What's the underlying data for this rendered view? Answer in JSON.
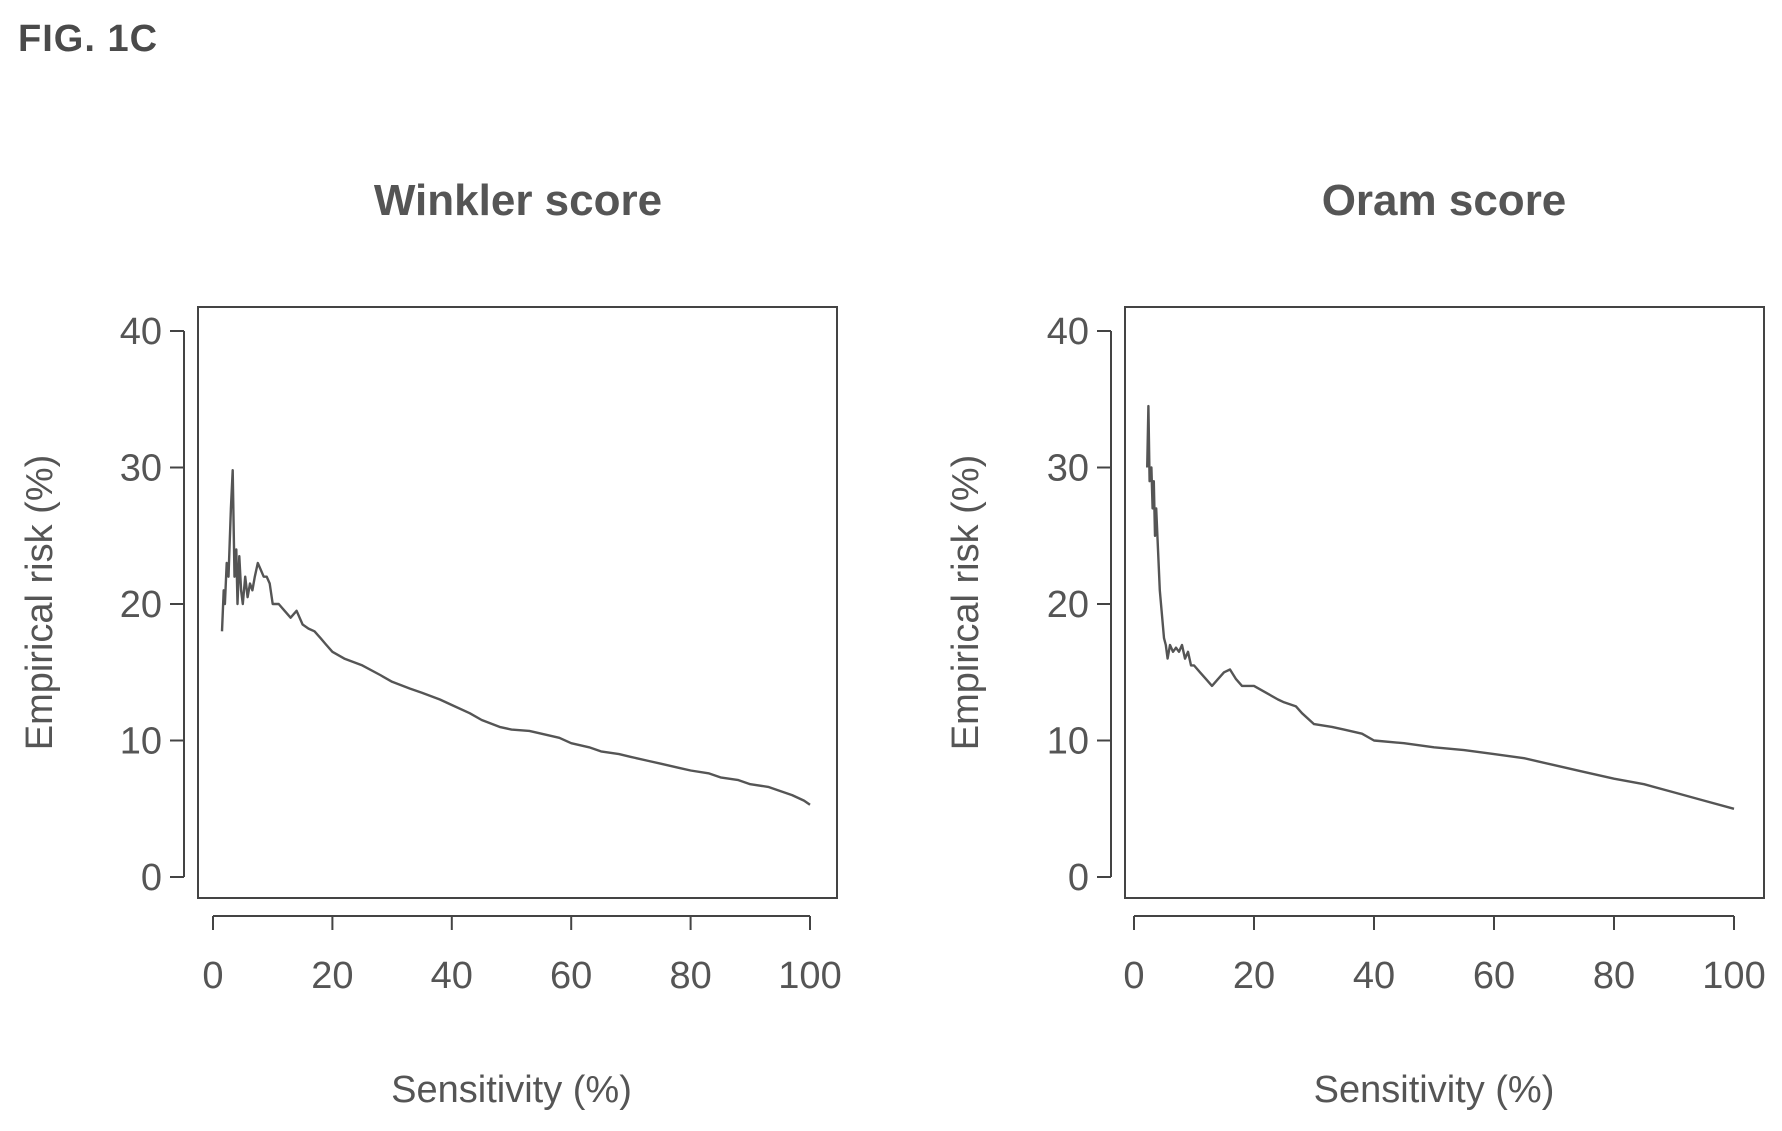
{
  "figure_label": "FIG. 1C",
  "chart_data": [
    {
      "type": "line",
      "title": "Winkler score",
      "xlabel": "Sensitivity (%)",
      "ylabel": "Empirical risk (%)",
      "xlim": [
        0,
        100
      ],
      "ylim": [
        0,
        40
      ],
      "xticks": [
        0,
        20,
        40,
        60,
        80,
        100
      ],
      "yticks": [
        0,
        10,
        20,
        30,
        40
      ],
      "grid": false,
      "series": [
        {
          "x": [
            1.5,
            1.8,
            2.0,
            2.3,
            2.6,
            3.0,
            3.3,
            3.6,
            3.9,
            4.1,
            4.4,
            4.7,
            5.0,
            5.4,
            5.8,
            6.2,
            6.6,
            7.0,
            7.5,
            8.0,
            8.5,
            9.0,
            9.5,
            10,
            11,
            12,
            13,
            14,
            15,
            16,
            17,
            18,
            19,
            20,
            22,
            25,
            28,
            30,
            33,
            35,
            38,
            40,
            43,
            45,
            48,
            50,
            53,
            55,
            58,
            60,
            63,
            65,
            68,
            70,
            73,
            75,
            78,
            80,
            83,
            85,
            88,
            90,
            93,
            95,
            97,
            99,
            100
          ],
          "y": [
            18,
            21,
            20,
            23,
            22,
            27,
            29.8,
            22,
            24,
            20,
            23.5,
            21,
            20,
            22,
            20.5,
            21.5,
            21,
            22,
            23,
            22.5,
            22,
            22,
            21.5,
            20,
            20,
            19.5,
            19,
            19.5,
            18.5,
            18.2,
            18,
            17.5,
            17,
            16.5,
            16,
            15.5,
            14.8,
            14.3,
            13.8,
            13.5,
            13,
            12.6,
            12,
            11.5,
            11,
            10.8,
            10.7,
            10.5,
            10.2,
            9.8,
            9.5,
            9.2,
            9,
            8.8,
            8.5,
            8.3,
            8,
            7.8,
            7.6,
            7.3,
            7.1,
            6.8,
            6.6,
            6.3,
            6,
            5.6,
            5.3
          ]
        }
      ]
    },
    {
      "type": "line",
      "title": "Oram score",
      "xlabel": "Sensitivity (%)",
      "ylabel": "Empirical risk (%)",
      "xlim": [
        0,
        100
      ],
      "ylim": [
        0,
        40
      ],
      "xticks": [
        0,
        20,
        40,
        60,
        80,
        100
      ],
      "yticks": [
        0,
        10,
        20,
        30,
        40
      ],
      "grid": false,
      "series": [
        {
          "x": [
            2.2,
            2.4,
            2.6,
            2.9,
            3.1,
            3.3,
            3.5,
            3.7,
            4.0,
            4.3,
            4.6,
            5.0,
            5.3,
            5.6,
            6.0,
            6.5,
            7.0,
            7.5,
            8.0,
            8.5,
            9.0,
            9.5,
            10,
            11,
            12,
            13,
            14,
            15,
            16,
            17,
            18,
            20,
            22,
            24,
            25,
            27,
            28,
            30,
            33,
            35,
            38,
            40,
            45,
            50,
            55,
            60,
            65,
            70,
            75,
            80,
            85,
            90,
            95,
            100
          ],
          "y": [
            30,
            34.5,
            29,
            30,
            27,
            29,
            25,
            27,
            24,
            21,
            19.5,
            17.5,
            17,
            16,
            17,
            16.5,
            16.8,
            16.5,
            17,
            16,
            16.5,
            15.5,
            15.5,
            15,
            14.5,
            14,
            14.5,
            15,
            15.2,
            14.5,
            14,
            14,
            13.5,
            13,
            12.8,
            12.5,
            12,
            11.2,
            11,
            10.8,
            10.5,
            10,
            9.8,
            9.5,
            9.3,
            9,
            8.7,
            8.2,
            7.7,
            7.2,
            6.8,
            6.2,
            5.6,
            5
          ]
        }
      ]
    }
  ]
}
